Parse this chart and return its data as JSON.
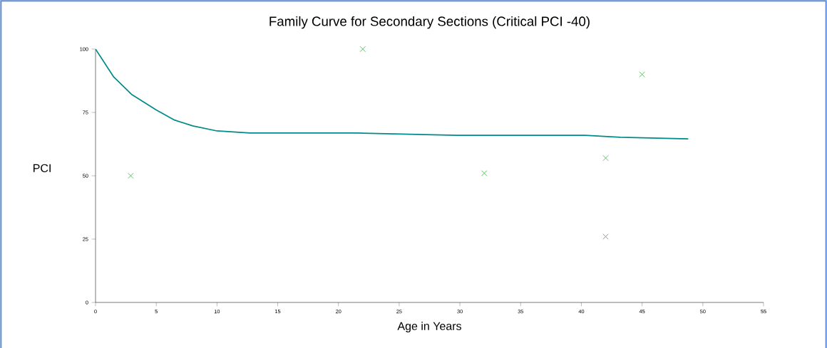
{
  "chart_data": {
    "type": "line",
    "title": "Family Curve for Secondary Sections (Critical PCI -40)",
    "xlabel": "Age in Years",
    "ylabel": "PCI",
    "xlim": [
      0,
      55
    ],
    "xticks": [
      0,
      5,
      10,
      15,
      20,
      25,
      30,
      35,
      40,
      45,
      50,
      55
    ],
    "ylim": [
      0,
      100
    ],
    "yticks": [
      0,
      25,
      50,
      75,
      100
    ],
    "series": [
      {
        "color": "#008b8b",
        "marker": "none",
        "x": [
          0,
          1.5,
          3,
          5,
          6.5,
          8,
          10,
          12.7,
          21.5,
          29.7,
          40.3,
          43.2,
          48.8
        ],
        "values": [
          100,
          89,
          82,
          76,
          72,
          69.7,
          67.7,
          66.9,
          66.9,
          66,
          66,
          65.2,
          64.6
        ]
      },
      {
        "type": "scatter",
        "color": "#3cb043",
        "marker": "cross",
        "x": [
          2.9,
          22,
          32,
          42,
          42,
          45
        ],
        "values": [
          50,
          100,
          51,
          57,
          26,
          90
        ]
      }
    ]
  }
}
